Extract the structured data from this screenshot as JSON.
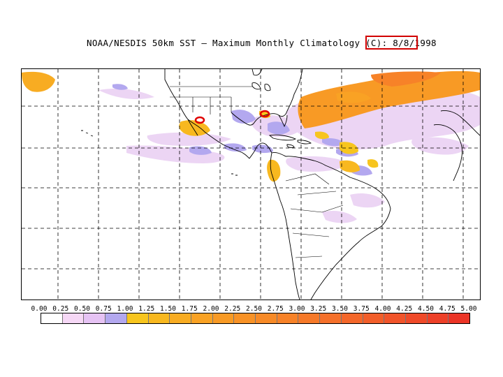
{
  "title": "NOAA/NESDIS 50km SST – Maximum Monthly Climatology (C):",
  "date": "8/8/1998",
  "legend": {
    "labels": [
      "0.00",
      "0.25",
      "0.50",
      "0.75",
      "1.00",
      "1.25",
      "1.50",
      "1.75",
      "2.00",
      "2.25",
      "2.50",
      "2.75",
      "3.00",
      "3.25",
      "3.50",
      "3.75",
      "4.00",
      "4.25",
      "4.50",
      "4.75",
      "5.00"
    ],
    "colors": [
      "#ffffff",
      "#f6d8f6",
      "#e6c3f4",
      "#b3a8ef",
      "#f7c51e",
      "#f8b81f",
      "#f8ac22",
      "#f9a224",
      "#f89a25",
      "#f89226",
      "#f78a27",
      "#f78228",
      "#f67929",
      "#f5702a",
      "#f4672a",
      "#f25e2a",
      "#f1542a",
      "#ef4a29",
      "#ed4028",
      "#eb3426"
    ]
  },
  "map": {
    "hotspot_markers": [
      "red-oval-pacific-mexico",
      "red-oval-gulf-of-mexico"
    ]
  }
}
